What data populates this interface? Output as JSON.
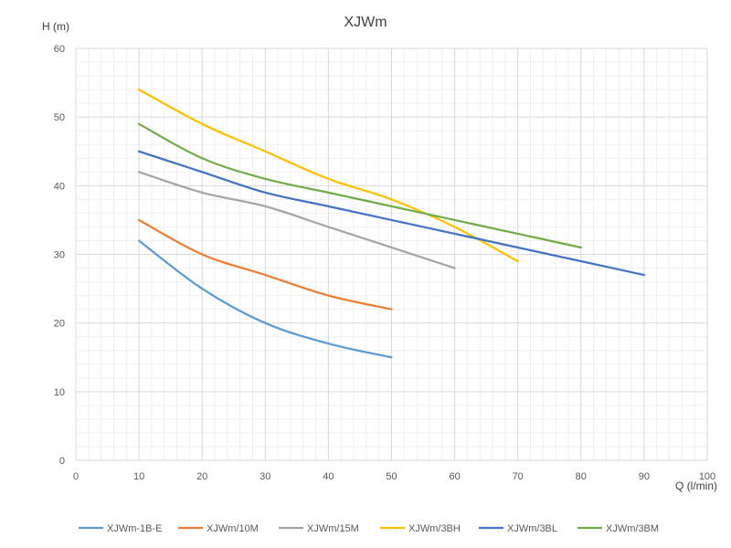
{
  "chart_data": {
    "type": "line",
    "title": "XJWm",
    "xlabel": "Q (l/min)",
    "ylabel": "H (m)",
    "xlim": [
      0,
      100
    ],
    "ylim": [
      0,
      60
    ],
    "x_ticks": [
      0,
      10,
      20,
      30,
      40,
      50,
      60,
      70,
      80,
      90,
      100
    ],
    "y_ticks": [
      0,
      10,
      20,
      30,
      40,
      50,
      60
    ],
    "grid": true,
    "legend_position": "bottom",
    "series": [
      {
        "name": "XJWm-1B-E",
        "color": "#5b9bd5",
        "x": [
          10,
          20,
          30,
          40,
          50
        ],
        "y": [
          32,
          25,
          20,
          17,
          15
        ]
      },
      {
        "name": "XJWm/10M",
        "color": "#ed7d31",
        "x": [
          10,
          20,
          30,
          40,
          50
        ],
        "y": [
          35,
          30,
          27,
          24,
          22
        ]
      },
      {
        "name": "XJWm/15M",
        "color": "#a5a5a5",
        "x": [
          10,
          20,
          30,
          40,
          50,
          60
        ],
        "y": [
          42,
          39,
          37,
          34,
          31,
          28
        ]
      },
      {
        "name": "XJWm/3BH",
        "color": "#ffc000",
        "x": [
          10,
          20,
          30,
          40,
          50,
          60,
          70
        ],
        "y": [
          54,
          49,
          45,
          41,
          38,
          34,
          29
        ]
      },
      {
        "name": "XJWm/3BL",
        "color": "#4472c4",
        "x": [
          10,
          20,
          30,
          40,
          50,
          60,
          70,
          80,
          90
        ],
        "y": [
          45,
          42,
          39,
          37,
          35,
          33,
          31,
          29,
          27
        ]
      },
      {
        "name": "XJWm/3BM",
        "color": "#70ad47",
        "x": [
          10,
          20,
          30,
          40,
          50,
          60,
          70,
          80
        ],
        "y": [
          49,
          44,
          41,
          39,
          37,
          35,
          33,
          31
        ]
      }
    ]
  }
}
